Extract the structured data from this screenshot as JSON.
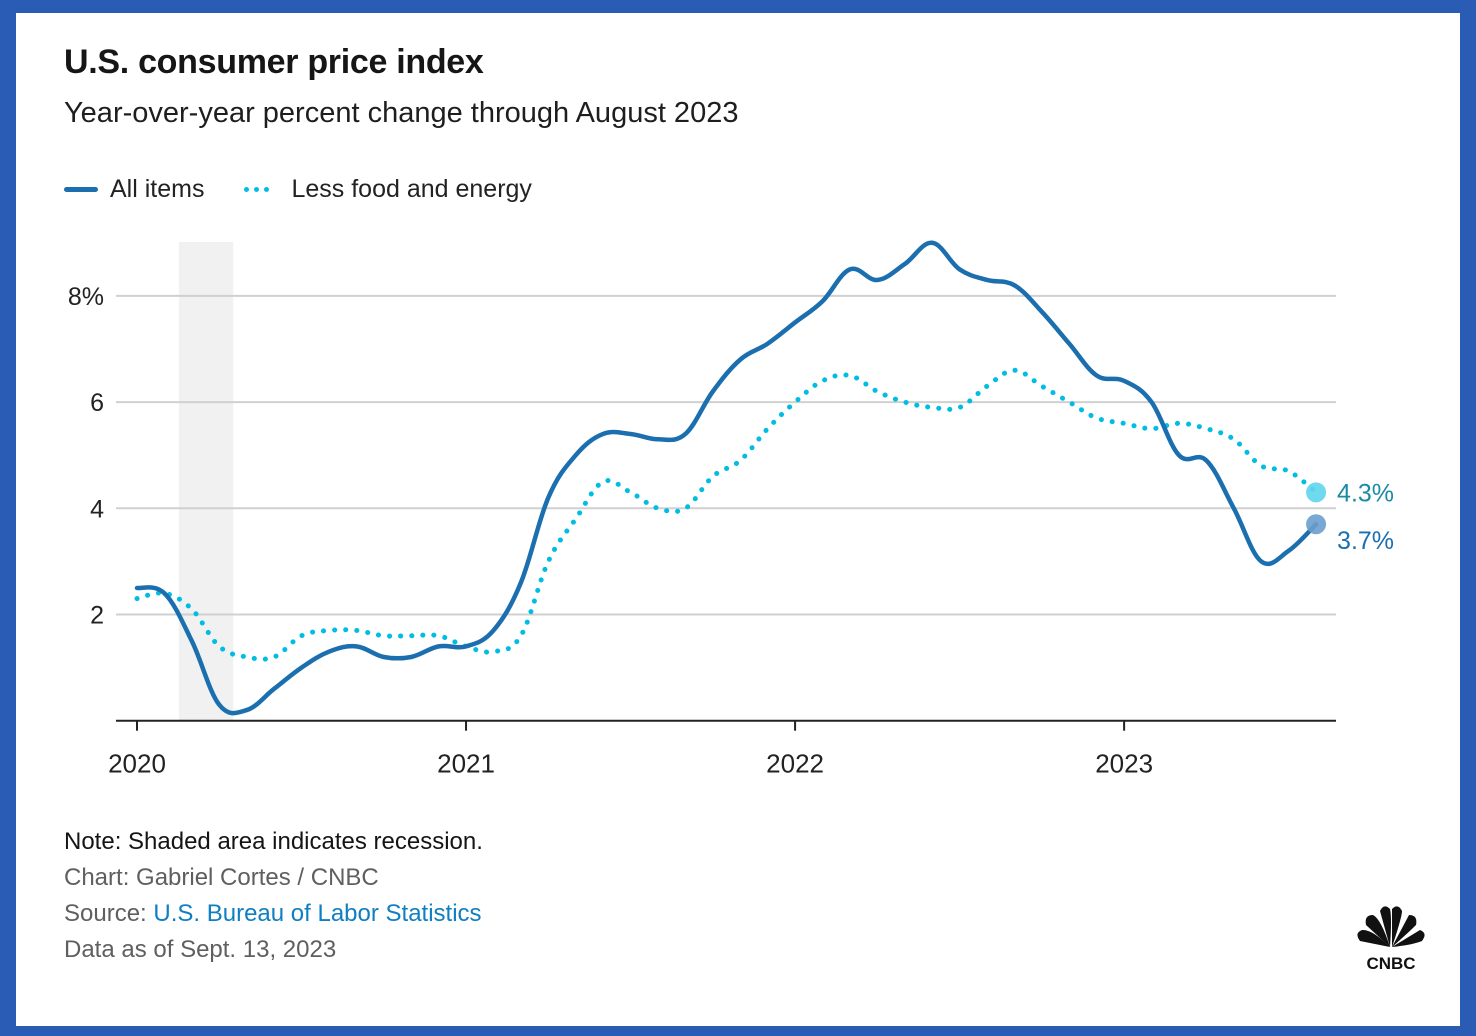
{
  "header": {
    "title": "U.S. consumer price index",
    "subtitle": "Year-over-year percent change through August 2023"
  },
  "legend": [
    {
      "label": "All items",
      "style": "solid",
      "color": "#1c6faf"
    },
    {
      "label": "Less food and energy",
      "style": "dotted",
      "color": "#00bde3"
    }
  ],
  "chart_data": {
    "type": "line",
    "title": "U.S. consumer price index",
    "subtitle": "Year-over-year percent change through August 2023",
    "xlabel": "",
    "ylabel": "",
    "x_start": "2020-01",
    "x_end": "2023-08",
    "x_ticks": [
      "2020",
      "2021",
      "2022",
      "2023"
    ],
    "y_ticks": [
      "2",
      "4",
      "6",
      "8%"
    ],
    "y_tick_values": [
      2,
      4,
      6,
      8
    ],
    "ylim": [
      0,
      9.2
    ],
    "grid": true,
    "legend_position": "top-left",
    "recession_shade": {
      "start": "2020-03",
      "end": "2020-04",
      "label": "recession"
    },
    "series": [
      {
        "name": "All items",
        "color": "#1c6faf",
        "style": "solid",
        "end_label": "3.7%",
        "end_label_color": "#1c6faf",
        "end_dot_color": "#6a9fcd",
        "values": [
          2.5,
          2.4,
          1.5,
          0.3,
          0.2,
          0.6,
          1.0,
          1.3,
          1.4,
          1.2,
          1.2,
          1.4,
          1.4,
          1.7,
          2.6,
          4.2,
          5.0,
          5.4,
          5.4,
          5.3,
          5.4,
          6.2,
          6.8,
          7.1,
          7.5,
          7.9,
          8.5,
          8.3,
          8.6,
          9.0,
          8.5,
          8.3,
          8.2,
          7.7,
          7.1,
          6.5,
          6.4,
          6.0,
          5.0,
          4.9,
          4.0,
          3.0,
          3.2,
          3.7
        ]
      },
      {
        "name": "Less food and energy",
        "color": "#00bde3",
        "style": "dotted",
        "end_label": "4.3%",
        "end_label_color": "#1a8aa5",
        "end_dot_color": "#5fd6ec",
        "values": [
          2.3,
          2.4,
          2.1,
          1.4,
          1.2,
          1.2,
          1.6,
          1.7,
          1.7,
          1.6,
          1.6,
          1.6,
          1.4,
          1.3,
          1.6,
          3.0,
          3.8,
          4.5,
          4.3,
          4.0,
          4.0,
          4.6,
          4.9,
          5.5,
          6.0,
          6.4,
          6.5,
          6.2,
          6.0,
          5.9,
          5.9,
          6.3,
          6.6,
          6.3,
          6.0,
          5.7,
          5.6,
          5.5,
          5.6,
          5.5,
          5.3,
          4.8,
          4.7,
          4.3
        ]
      }
    ]
  },
  "footer": {
    "note": "Note: Shaded area indicates recession.",
    "credit": "Chart: Gabriel Cortes / CNBC",
    "source_prefix": "Source: ",
    "source_link": "U.S. Bureau of Labor Statistics",
    "data_as_of": "Data as of Sept. 13, 2023"
  },
  "logo": {
    "text": "CNBC",
    "icon": "cnbc-peacock-icon"
  }
}
